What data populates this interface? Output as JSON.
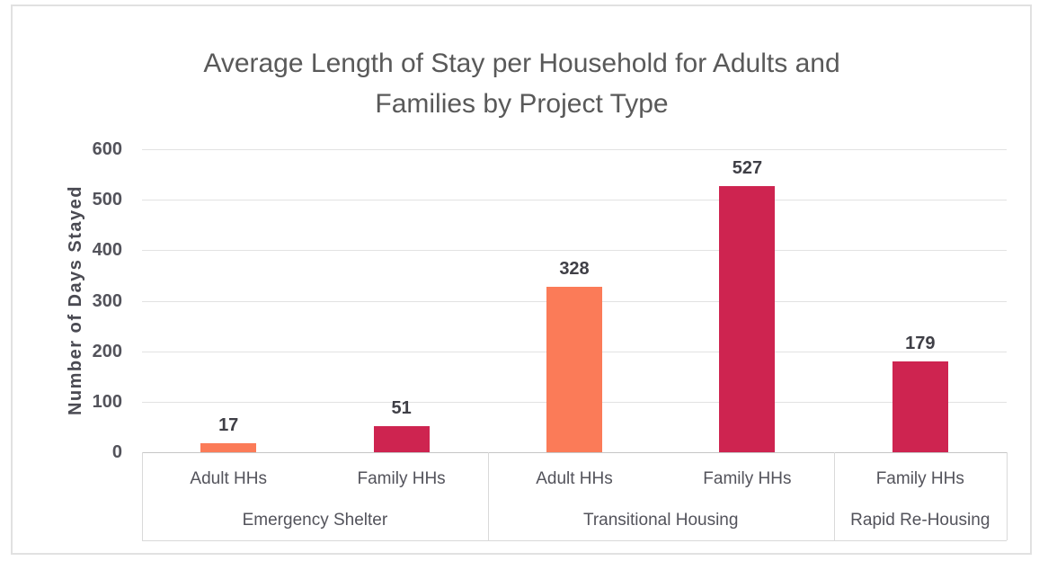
{
  "chart_data": {
    "type": "bar",
    "title": "Average Length of Stay per Household for Adults and Families by Project Type",
    "title_lines": [
      "Average Length of Stay per Household for Adults and",
      "Families by Project Type"
    ],
    "ylabel": "Number of Days Stayed",
    "xlabel": "",
    "ylim": [
      0,
      600
    ],
    "yticks": [
      0,
      100,
      200,
      300,
      400,
      500,
      600
    ],
    "grid": true,
    "legend_position": "none",
    "data_labels_shown": true,
    "series_colors": {
      "Adult HHs": "#fb7b58",
      "Family HHs": "#ce2450"
    },
    "groups": [
      {
        "label": "Emergency Shelter",
        "bars": [
          {
            "category": "Adult HHs",
            "series": "Adult HHs",
            "value": 17
          },
          {
            "category": "Family HHs",
            "series": "Family HHs",
            "value": 51
          }
        ]
      },
      {
        "label": "Transitional Housing",
        "bars": [
          {
            "category": "Adult HHs",
            "series": "Adult HHs",
            "value": 328
          },
          {
            "category": "Family HHs",
            "series": "Family HHs",
            "value": 527
          }
        ]
      },
      {
        "label": "Rapid Re-Housing",
        "bars": [
          {
            "category": "Family HHs",
            "series": "Family HHs",
            "value": 179
          }
        ]
      }
    ],
    "text_colors": {
      "title": "#595959",
      "axis_text": "#53535b",
      "data_label": "#3f3f46",
      "gridline": "#e2e2e2",
      "axis_line": "#c6c6c6",
      "frame_border": "#e1e1e1"
    }
  }
}
